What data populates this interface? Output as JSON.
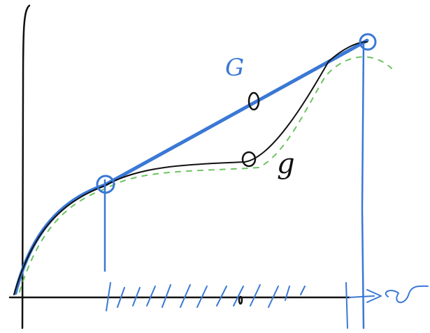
{
  "labels": {
    "upper": "G",
    "lower": "g"
  }
}
